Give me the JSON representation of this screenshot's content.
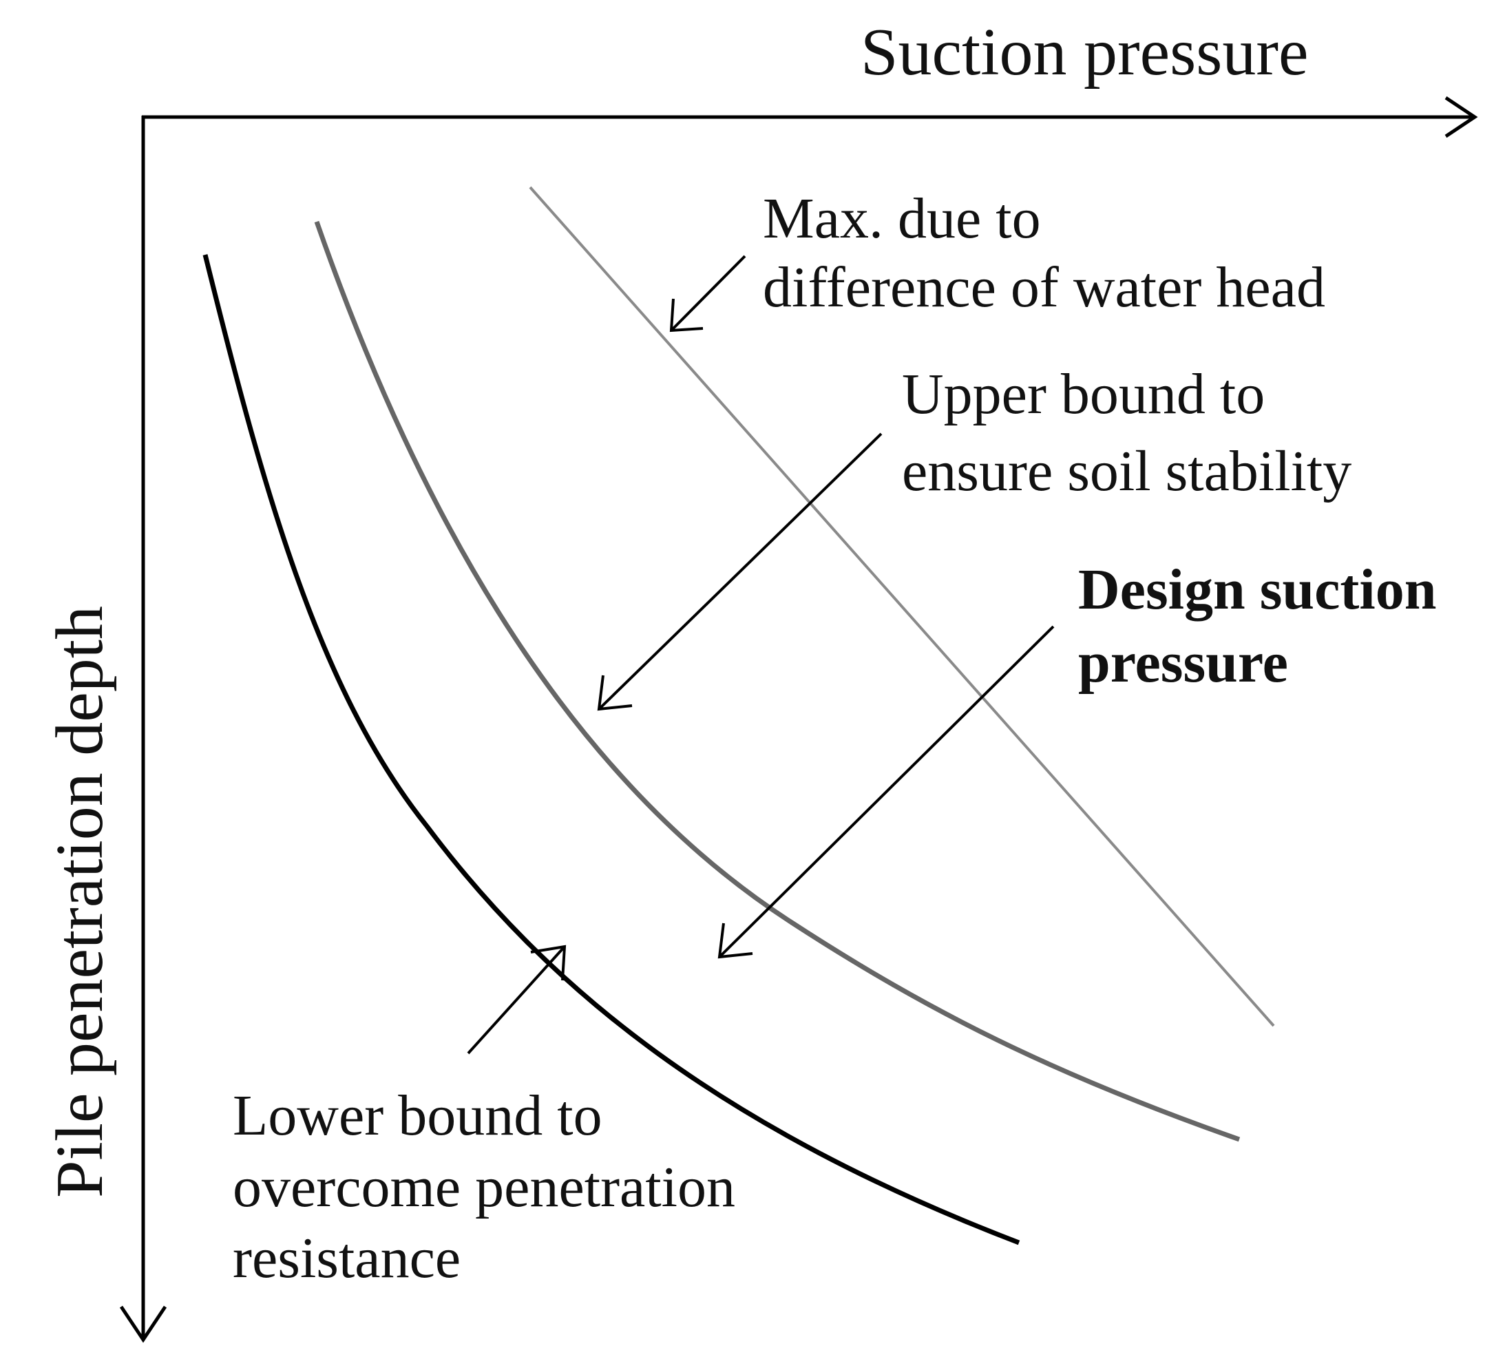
{
  "axes": {
    "x_title": "Suction pressure",
    "y_title": "Pile penetration depth"
  },
  "curves": [
    {
      "name": "max-water-head",
      "color": "#8a8a8a"
    },
    {
      "name": "upper-bound",
      "color": "#6a6a6a"
    },
    {
      "name": "lower-bound",
      "color": "#000000"
    }
  ],
  "annotations": {
    "max_water_head": {
      "lines": [
        "Max. due to",
        "difference of water head"
      ]
    },
    "upper_bound": {
      "lines": [
        "Upper bound to",
        "ensure soil stability"
      ]
    },
    "design_suction": {
      "lines": [
        "Design suction",
        "pressure"
      ]
    },
    "lower_bound": {
      "lines": [
        "Lower bound to",
        "overcome penetration",
        "resistance"
      ]
    }
  }
}
